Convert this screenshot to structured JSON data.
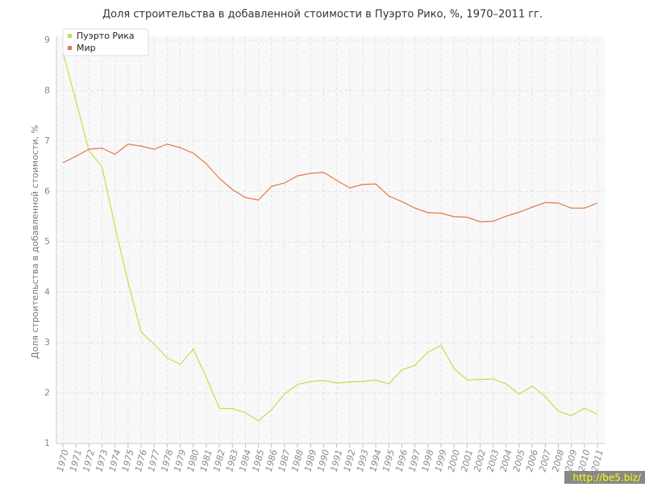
{
  "chart_data": {
    "type": "line",
    "title": "Доля строительства в добавленной стоимости в Пуэрто Рико, %, 1970–2011 гг.",
    "y_label": "Доля строительства в добавленной стоимости, %",
    "categories": [
      "1970",
      "1971",
      "1972",
      "1973",
      "1974",
      "1975",
      "1976",
      "1977",
      "1978",
      "1979",
      "1980",
      "1981",
      "1982",
      "1983",
      "1984",
      "1985",
      "1986",
      "1987",
      "1988",
      "1989",
      "1990",
      "1991",
      "1992",
      "1993",
      "1994",
      "1995",
      "1996",
      "1997",
      "1998",
      "1999",
      "2000",
      "2001",
      "2002",
      "2003",
      "2004",
      "2005",
      "2006",
      "2007",
      "2008",
      "2009",
      "2010",
      "2011"
    ],
    "series": [
      {
        "name": "Пуэрто Рика",
        "color": "#c5dc4a",
        "values": [
          8.76,
          7.8,
          6.81,
          6.49,
          5.3,
          4.2,
          3.21,
          2.97,
          2.7,
          2.57,
          2.87,
          2.31,
          1.7,
          1.69,
          1.61,
          1.45,
          1.67,
          1.98,
          2.17,
          2.23,
          2.25,
          2.2,
          2.22,
          2.23,
          2.26,
          2.18,
          2.46,
          2.55,
          2.81,
          2.95,
          2.49,
          2.26,
          2.27,
          2.28,
          2.18,
          1.98,
          2.14,
          1.93,
          1.64,
          1.55,
          1.7,
          1.58
        ]
      },
      {
        "name": "Мир",
        "color": "#e07848",
        "values": [
          6.57,
          6.7,
          6.84,
          6.86,
          6.74,
          6.94,
          6.9,
          6.84,
          6.94,
          6.87,
          6.76,
          6.55,
          6.26,
          6.04,
          5.88,
          5.83,
          6.1,
          6.17,
          6.31,
          6.36,
          6.38,
          6.22,
          6.07,
          6.14,
          6.15,
          5.91,
          5.8,
          5.67,
          5.58,
          5.57,
          5.5,
          5.49,
          5.4,
          5.41,
          5.51,
          5.59,
          5.69,
          5.78,
          5.77,
          5.67,
          5.67,
          5.77
        ]
      }
    ],
    "ylim": [
      1,
      9
    ],
    "yticks": [
      1,
      2,
      3,
      4,
      5,
      6,
      7,
      8,
      9
    ],
    "grid": true,
    "legend": "top-left",
    "watermark": "http://be5.biz/"
  }
}
